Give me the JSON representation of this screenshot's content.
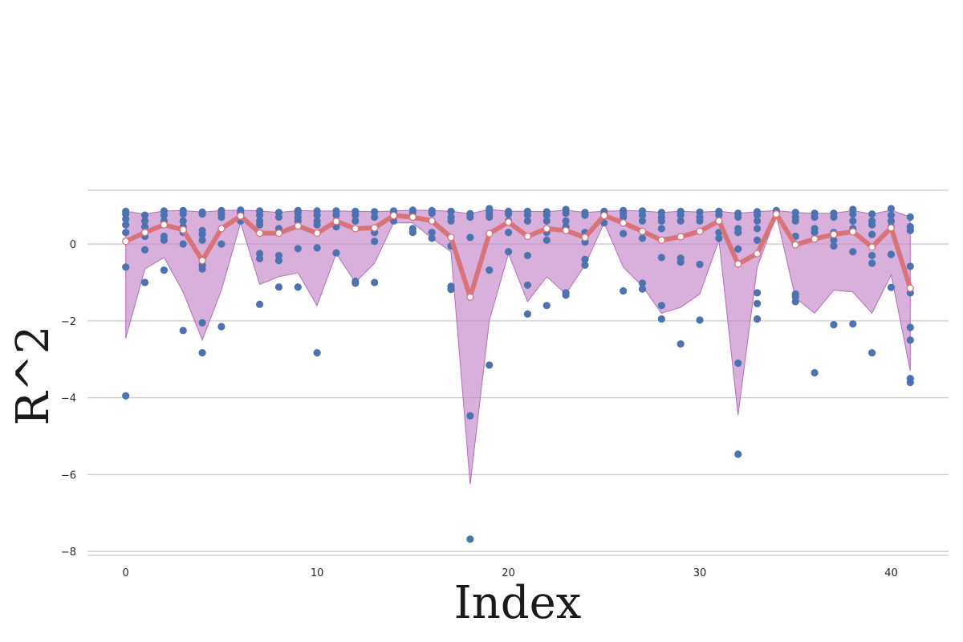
{
  "chart_data": {
    "type": "scatter",
    "title": "",
    "xlabel": "Index",
    "ylabel": "R^2",
    "xlim": [
      -2,
      43
    ],
    "ylim": [
      -8.1,
      1.4
    ],
    "xticks": [
      0,
      10,
      20,
      30,
      40
    ],
    "yticks": [
      -8,
      -6,
      -4,
      -2,
      0
    ],
    "xtick_labels": [
      "0",
      "10",
      "20",
      "30",
      "40"
    ],
    "ytick_labels": [
      "−8",
      "−6",
      "−4",
      "−2",
      "0"
    ],
    "grid": "horizontal",
    "colors": {
      "points": "#4c72b0",
      "mean_line": "#d9737a",
      "band_fill": "#c586c9",
      "band_edge": "#b070b8",
      "grid": "#cccccc"
    },
    "x": [
      0,
      1,
      2,
      3,
      4,
      5,
      6,
      7,
      8,
      9,
      10,
      11,
      12,
      13,
      14,
      15,
      16,
      17,
      18,
      19,
      20,
      21,
      22,
      23,
      24,
      25,
      26,
      27,
      28,
      29,
      30,
      31,
      32,
      33,
      34,
      35,
      36,
      37,
      38,
      39,
      40,
      41
    ],
    "band_upper": [
      0.85,
      0.78,
      0.86,
      0.87,
      0.83,
      0.87,
      0.88,
      0.86,
      0.82,
      0.87,
      0.86,
      0.86,
      0.85,
      0.84,
      0.86,
      0.88,
      0.87,
      0.85,
      0.79,
      0.9,
      0.85,
      0.85,
      0.84,
      0.88,
      0.82,
      0.85,
      0.87,
      0.86,
      0.82,
      0.85,
      0.83,
      0.85,
      0.8,
      0.84,
      0.87,
      0.82,
      0.8,
      0.8,
      0.87,
      0.78,
      0.88,
      0.7
    ],
    "band_lower": [
      -2.45,
      -0.65,
      -0.35,
      -1.25,
      -2.5,
      -1.2,
      0.55,
      -1.05,
      -0.85,
      -0.75,
      -1.6,
      -0.25,
      -1.0,
      -0.5,
      0.55,
      0.55,
      0.15,
      -0.2,
      -6.25,
      -2.0,
      -0.25,
      -1.5,
      -0.85,
      -1.3,
      -0.55,
      0.55,
      -0.6,
      -1.1,
      -1.8,
      -1.65,
      -1.3,
      0.1,
      -4.45,
      -0.6,
      0.75,
      -1.4,
      -1.8,
      -1.2,
      -1.25,
      -1.8,
      -0.8,
      -3.3
    ],
    "mean": [
      0.07,
      0.3,
      0.5,
      0.37,
      -0.43,
      0.4,
      0.73,
      0.28,
      0.28,
      0.47,
      0.28,
      0.59,
      0.4,
      0.42,
      0.74,
      0.7,
      0.6,
      0.17,
      -1.38,
      0.27,
      0.57,
      0.2,
      0.4,
      0.35,
      0.17,
      0.74,
      0.55,
      0.33,
      0.1,
      0.19,
      0.33,
      0.6,
      -0.52,
      -0.25,
      0.78,
      -0.02,
      0.13,
      0.25,
      0.32,
      -0.08,
      0.42,
      -1.15
    ],
    "points": [
      {
        "x": 0,
        "y": [
          0.85,
          0.78,
          0.65,
          0.5,
          0.3,
          -0.6,
          -3.95
        ]
      },
      {
        "x": 1,
        "y": [
          0.75,
          0.6,
          0.45,
          0.2,
          -0.15,
          -1.0
        ]
      },
      {
        "x": 2,
        "y": [
          0.86,
          0.75,
          0.6,
          0.2,
          0.1,
          -0.68
        ]
      },
      {
        "x": 3,
        "y": [
          0.87,
          0.78,
          0.6,
          0.45,
          0.3,
          0.0,
          -2.25
        ]
      },
      {
        "x": 4,
        "y": [
          0.83,
          0.78,
          0.35,
          0.25,
          0.1,
          -0.55,
          -0.65,
          -2.05,
          -2.83
        ]
      },
      {
        "x": 5,
        "y": [
          0.87,
          0.78,
          0.7,
          0.0,
          -2.15
        ]
      },
      {
        "x": 6,
        "y": [
          0.88,
          0.85,
          0.8,
          0.6
        ]
      },
      {
        "x": 7,
        "y": [
          0.86,
          0.75,
          0.6,
          0.5,
          -0.25,
          -0.38,
          -1.57
        ]
      },
      {
        "x": 8,
        "y": [
          0.82,
          0.7,
          0.4,
          -0.3,
          -0.43,
          -1.12
        ]
      },
      {
        "x": 9,
        "y": [
          0.87,
          0.8,
          0.7,
          0.6,
          -0.12,
          -1.12
        ]
      },
      {
        "x": 10,
        "y": [
          0.86,
          0.75,
          0.6,
          0.5,
          -0.1,
          -2.83
        ]
      },
      {
        "x": 11,
        "y": [
          0.86,
          0.75,
          0.6,
          0.45,
          -0.23
        ]
      },
      {
        "x": 12,
        "y": [
          0.85,
          0.75,
          0.6,
          -0.97,
          -1.02
        ]
      },
      {
        "x": 13,
        "y": [
          0.84,
          0.7,
          0.3,
          0.07,
          -1.0
        ]
      },
      {
        "x": 14,
        "y": [
          0.86,
          0.8,
          0.6
        ]
      },
      {
        "x": 15,
        "y": [
          0.88,
          0.82,
          0.7,
          0.4,
          0.3
        ]
      },
      {
        "x": 16,
        "y": [
          0.87,
          0.8,
          0.6,
          0.3,
          0.15
        ]
      },
      {
        "x": 17,
        "y": [
          0.85,
          0.7,
          0.6,
          -0.05,
          -1.1,
          -1.18
        ]
      },
      {
        "x": 18,
        "y": [
          0.79,
          0.7,
          0.17,
          -4.47,
          -7.68
        ]
      },
      {
        "x": 19,
        "y": [
          0.92,
          0.85,
          0.78,
          0.7,
          -0.68,
          -3.15
        ]
      },
      {
        "x": 20,
        "y": [
          0.85,
          0.78,
          0.6,
          0.3,
          -0.2
        ]
      },
      {
        "x": 21,
        "y": [
          0.85,
          0.75,
          0.6,
          -0.3,
          -1.07,
          -1.82
        ]
      },
      {
        "x": 22,
        "y": [
          0.84,
          0.75,
          0.6,
          0.3,
          0.1,
          -1.6
        ]
      },
      {
        "x": 23,
        "y": [
          0.9,
          0.8,
          0.6,
          0.45,
          -1.27,
          -1.33
        ]
      },
      {
        "x": 24,
        "y": [
          0.82,
          0.75,
          0.3,
          0.05,
          -0.4,
          -0.55
        ]
      },
      {
        "x": 25,
        "y": [
          0.85,
          0.78,
          0.55
        ]
      },
      {
        "x": 26,
        "y": [
          0.87,
          0.8,
          0.7,
          0.27,
          -1.22
        ]
      },
      {
        "x": 27,
        "y": [
          0.86,
          0.75,
          0.6,
          0.15,
          -1.02,
          -1.17
        ]
      },
      {
        "x": 28,
        "y": [
          0.82,
          0.7,
          0.6,
          0.4,
          -0.35,
          -1.6,
          -1.95
        ]
      },
      {
        "x": 29,
        "y": [
          0.85,
          0.75,
          0.6,
          -0.37,
          -0.47,
          -2.6
        ]
      },
      {
        "x": 30,
        "y": [
          0.83,
          0.7,
          0.6,
          -0.53,
          -1.98
        ]
      },
      {
        "x": 31,
        "y": [
          0.85,
          0.75,
          0.6,
          0.3,
          0.15
        ]
      },
      {
        "x": 32,
        "y": [
          0.8,
          0.7,
          0.4,
          0.3,
          -0.13,
          -3.1,
          -5.47
        ]
      },
      {
        "x": 33,
        "y": [
          0.84,
          0.75,
          0.6,
          0.4,
          0.1,
          -1.27,
          -1.55,
          -1.95
        ]
      },
      {
        "x": 34,
        "y": [
          0.87,
          0.8
        ]
      },
      {
        "x": 35,
        "y": [
          0.82,
          0.7,
          0.6,
          0.2,
          -1.3,
          -1.37,
          -1.5
        ]
      },
      {
        "x": 36,
        "y": [
          0.8,
          0.7,
          0.4,
          0.3,
          -3.35
        ]
      },
      {
        "x": 37,
        "y": [
          0.8,
          0.7,
          0.3,
          0.1,
          -0.05,
          -2.1
        ]
      },
      {
        "x": 38,
        "y": [
          0.9,
          0.78,
          0.6,
          0.4,
          -0.2,
          -2.08
        ]
      },
      {
        "x": 39,
        "y": [
          0.78,
          0.6,
          0.5,
          0.25,
          -0.3,
          -0.5,
          -2.83
        ]
      },
      {
        "x": 40,
        "y": [
          0.92,
          0.75,
          0.6,
          0.45,
          -0.27,
          -1.13
        ]
      },
      {
        "x": 41,
        "y": [
          0.7,
          0.45,
          0.35,
          -0.58,
          -1.27,
          -2.17,
          -2.5,
          -3.5,
          -3.6
        ]
      }
    ]
  }
}
